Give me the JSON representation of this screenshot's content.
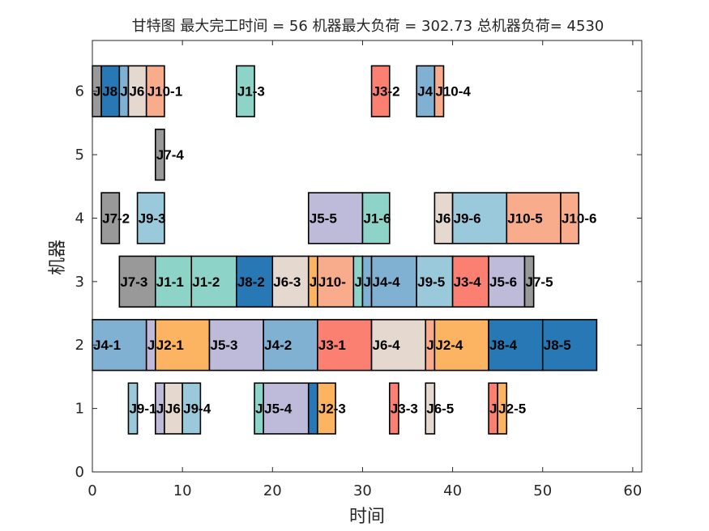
{
  "chart_data": {
    "type": "gantt",
    "title": "甘特图 最大完工时间 = 56 机器最大负荷 = 302.73 总机器负荷= 4530",
    "xlabel": "时间",
    "ylabel": "机器",
    "xlim": [
      0,
      61
    ],
    "ylim": [
      0,
      6.8
    ],
    "xticks": [
      0,
      10,
      20,
      30,
      40,
      50,
      60
    ],
    "yticks": [
      0,
      1,
      2,
      3,
      4,
      5,
      6
    ],
    "grid": false,
    "job_colors": {
      "J1": "#8dd3c7",
      "J2": "#fdb462",
      "J3": "#fb8072",
      "J4": "#80b1d3",
      "J5": "#bebada",
      "J6": "#e5d8cf",
      "J7": "#999999",
      "J8": "#2878b5",
      "J9": "#9ac9db",
      "J10": "#f8ac8c"
    },
    "tasks": [
      {
        "machine": 6,
        "job": "J7",
        "label": "J",
        "start": 0,
        "end": 1
      },
      {
        "machine": 6,
        "job": "J8",
        "label": "J8",
        "start": 1,
        "end": 3
      },
      {
        "machine": 6,
        "job": "J4",
        "label": "J",
        "start": 3,
        "end": 4
      },
      {
        "machine": 6,
        "job": "J6",
        "label": "J6",
        "start": 4,
        "end": 6
      },
      {
        "machine": 6,
        "job": "J10",
        "label": "J10-1",
        "start": 6,
        "end": 8
      },
      {
        "machine": 6,
        "job": "J1",
        "label": "J1-3",
        "start": 16,
        "end": 18
      },
      {
        "machine": 6,
        "job": "J3",
        "label": "J3-2",
        "start": 31,
        "end": 33
      },
      {
        "machine": 6,
        "job": "J4",
        "label": "J4",
        "start": 36,
        "end": 38
      },
      {
        "machine": 6,
        "job": "J10",
        "label": "J10-4",
        "start": 38,
        "end": 39
      },
      {
        "machine": 5,
        "job": "J7",
        "label": "J7-4",
        "start": 7,
        "end": 8
      },
      {
        "machine": 4,
        "job": "J7",
        "label": "J7-2",
        "start": 1,
        "end": 3
      },
      {
        "machine": 4,
        "job": "J9",
        "label": "J9-3",
        "start": 5,
        "end": 8
      },
      {
        "machine": 4,
        "job": "J5",
        "label": "J5-5",
        "start": 24,
        "end": 30
      },
      {
        "machine": 4,
        "job": "J1",
        "label": "J1-6",
        "start": 30,
        "end": 33
      },
      {
        "machine": 4,
        "job": "J6",
        "label": "J6",
        "start": 38,
        "end": 40
      },
      {
        "machine": 4,
        "job": "J9",
        "label": "J9-6",
        "start": 40,
        "end": 46
      },
      {
        "machine": 4,
        "job": "J10",
        "label": "J10-5",
        "start": 46,
        "end": 52
      },
      {
        "machine": 4,
        "job": "J10",
        "label": "J10-6",
        "start": 52,
        "end": 54
      },
      {
        "machine": 3,
        "job": "J7",
        "label": "J7-3",
        "start": 3,
        "end": 7
      },
      {
        "machine": 3,
        "job": "J1",
        "label": "J1-1",
        "start": 7,
        "end": 11
      },
      {
        "machine": 3,
        "job": "J1",
        "label": "J1-2",
        "start": 11,
        "end": 16
      },
      {
        "machine": 3,
        "job": "J8",
        "label": "J8-2",
        "start": 16,
        "end": 20
      },
      {
        "machine": 3,
        "job": "J6",
        "label": "J6-3",
        "start": 20,
        "end": 24
      },
      {
        "machine": 3,
        "job": "J2",
        "label": "J",
        "start": 24,
        "end": 25
      },
      {
        "machine": 3,
        "job": "J10",
        "label": "J10-",
        "start": 25,
        "end": 29
      },
      {
        "machine": 3,
        "job": "J1",
        "label": "J",
        "start": 29,
        "end": 30
      },
      {
        "machine": 3,
        "job": "J4",
        "label": "J",
        "start": 30,
        "end": 31
      },
      {
        "machine": 3,
        "job": "J4",
        "label": "J4-4",
        "start": 31,
        "end": 36
      },
      {
        "machine": 3,
        "job": "J9",
        "label": "J9-5",
        "start": 36,
        "end": 40
      },
      {
        "machine": 3,
        "job": "J3",
        "label": "J3-4",
        "start": 40,
        "end": 44
      },
      {
        "machine": 3,
        "job": "J5",
        "label": "J5-6",
        "start": 44,
        "end": 48
      },
      {
        "machine": 3,
        "job": "J7",
        "label": "J7-5",
        "start": 48,
        "end": 49
      },
      {
        "machine": 2,
        "job": "J4",
        "label": "J4-1",
        "start": 0,
        "end": 6
      },
      {
        "machine": 2,
        "job": "J5",
        "label": "J",
        "start": 6,
        "end": 7
      },
      {
        "machine": 2,
        "job": "J2",
        "label": "J2-1",
        "start": 7,
        "end": 13
      },
      {
        "machine": 2,
        "job": "J5",
        "label": "J5-3",
        "start": 13,
        "end": 19
      },
      {
        "machine": 2,
        "job": "J4",
        "label": "J4-2",
        "start": 19,
        "end": 25
      },
      {
        "machine": 2,
        "job": "J3",
        "label": "J3-1",
        "start": 25,
        "end": 31
      },
      {
        "machine": 2,
        "job": "J6",
        "label": "J6-4",
        "start": 31,
        "end": 37
      },
      {
        "machine": 2,
        "job": "J10",
        "label": "J",
        "start": 37,
        "end": 38
      },
      {
        "machine": 2,
        "job": "J2",
        "label": "J2-4",
        "start": 38,
        "end": 44
      },
      {
        "machine": 2,
        "job": "J8",
        "label": "J8-4",
        "start": 44,
        "end": 50
      },
      {
        "machine": 2,
        "job": "J8",
        "label": "J8-5",
        "start": 50,
        "end": 56
      },
      {
        "machine": 1,
        "job": "J9",
        "label": "J9-1",
        "start": 4,
        "end": 5
      },
      {
        "machine": 1,
        "job": "J5",
        "label": "J",
        "start": 7,
        "end": 8
      },
      {
        "machine": 1,
        "job": "J6",
        "label": "J6",
        "start": 8,
        "end": 10
      },
      {
        "machine": 1,
        "job": "J9",
        "label": "J9-4",
        "start": 10,
        "end": 12
      },
      {
        "machine": 1,
        "job": "J1",
        "label": "J",
        "start": 18,
        "end": 19
      },
      {
        "machine": 1,
        "job": "J5",
        "label": "J5-4",
        "start": 19,
        "end": 24
      },
      {
        "machine": 1,
        "job": "J8",
        "label": "",
        "start": 24,
        "end": 25
      },
      {
        "machine": 1,
        "job": "J2",
        "label": "J2-3",
        "start": 25,
        "end": 27
      },
      {
        "machine": 1,
        "job": "J3",
        "label": "J3-3",
        "start": 33,
        "end": 34
      },
      {
        "machine": 1,
        "job": "J6",
        "label": "J6-5",
        "start": 37,
        "end": 38
      },
      {
        "machine": 1,
        "job": "J3",
        "label": "J",
        "start": 44,
        "end": 45
      },
      {
        "machine": 1,
        "job": "J2",
        "label": "J2-5",
        "start": 45,
        "end": 46
      }
    ]
  }
}
